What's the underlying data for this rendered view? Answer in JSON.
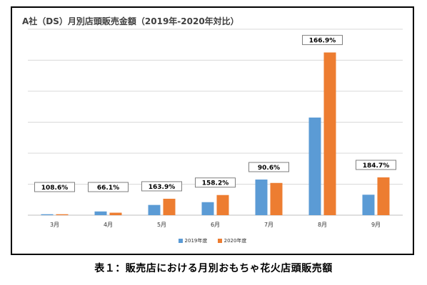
{
  "chart_data": {
    "type": "bar",
    "title": "A社（DS）月別店頭販売金額（2019年-2020年対比）",
    "categories": [
      "3月",
      "4月",
      "5月",
      "6月",
      "7月",
      "8月",
      "9月"
    ],
    "series": [
      {
        "name": "2019年度",
        "color": "#5b9bd5",
        "values": [
          0.3,
          1.2,
          3.3,
          4.2,
          11.5,
          31.5,
          6.6
        ]
      },
      {
        "name": "2020年度",
        "color": "#ed7d31",
        "values": [
          0.3,
          0.8,
          5.3,
          6.5,
          10.4,
          52.5,
          12.2
        ]
      }
    ],
    "ratio_labels": [
      "108.6%",
      "66.1%",
      "163.9%",
      "158.2%",
      "90.6%",
      "166.9%",
      "184.7%"
    ],
    "ylim": [
      0,
      60
    ],
    "grid": true,
    "legend": "bottom"
  },
  "caption": "表１：販売店における月別おもちゃ花火店頭販売額"
}
